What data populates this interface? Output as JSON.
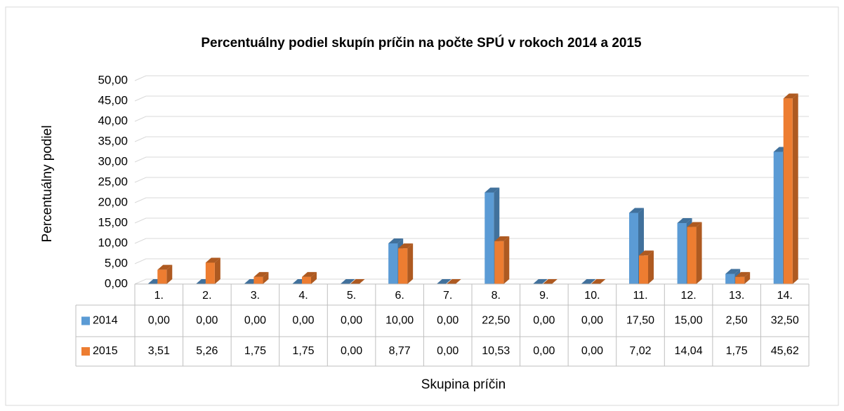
{
  "chart_data": {
    "type": "bar3d",
    "title": "Percentuálny podiel skupín príčin na počte SPÚ v rokoch 2014 a 2015",
    "y_label": "Percentuálny podiel",
    "x_label": "Skupina príčin",
    "categories": [
      "1.",
      "2.",
      "3.",
      "4.",
      "5.",
      "6.",
      "7.",
      "8.",
      "9.",
      "10.",
      "11.",
      "12.",
      "13.",
      "14."
    ],
    "series": [
      {
        "name": "2014",
        "color": "#5b9bd5",
        "side": "#41719c",
        "values": [
          0,
          0,
          0,
          0,
          0,
          10,
          0,
          22.5,
          0,
          0,
          17.5,
          15,
          2.5,
          32.5
        ],
        "value_labels": [
          "0,00",
          "0,00",
          "0,00",
          "0,00",
          "0,00",
          "10,00",
          "0,00",
          "22,50",
          "0,00",
          "0,00",
          "17,50",
          "15,00",
          "2,50",
          "32,50"
        ]
      },
      {
        "name": "2015",
        "color": "#ed7d31",
        "side": "#ae5a21",
        "values": [
          3.51,
          5.26,
          1.75,
          1.75,
          0,
          8.77,
          0,
          10.53,
          0,
          0,
          7.02,
          14.04,
          1.75,
          45.62
        ],
        "value_labels": [
          "3,51",
          "5,26",
          "1,75",
          "1,75",
          "0,00",
          "8,77",
          "0,00",
          "10,53",
          "0,00",
          "0,00",
          "7,02",
          "14,04",
          "1,75",
          "45,62"
        ]
      }
    ],
    "ylim": [
      0,
      50
    ],
    "yticks": [
      {
        "value": 0,
        "label": "0,00"
      },
      {
        "value": 5,
        "label": "5,00"
      },
      {
        "value": 10,
        "label": "10,00"
      },
      {
        "value": 15,
        "label": "15,00"
      },
      {
        "value": 20,
        "label": "20,00"
      },
      {
        "value": 25,
        "label": "25,00"
      },
      {
        "value": 30,
        "label": "30,00"
      },
      {
        "value": 35,
        "label": "35,00"
      },
      {
        "value": 40,
        "label": "40,00"
      },
      {
        "value": 45,
        "label": "45,00"
      },
      {
        "value": 50,
        "label": "50,00"
      }
    ],
    "grid": true
  }
}
